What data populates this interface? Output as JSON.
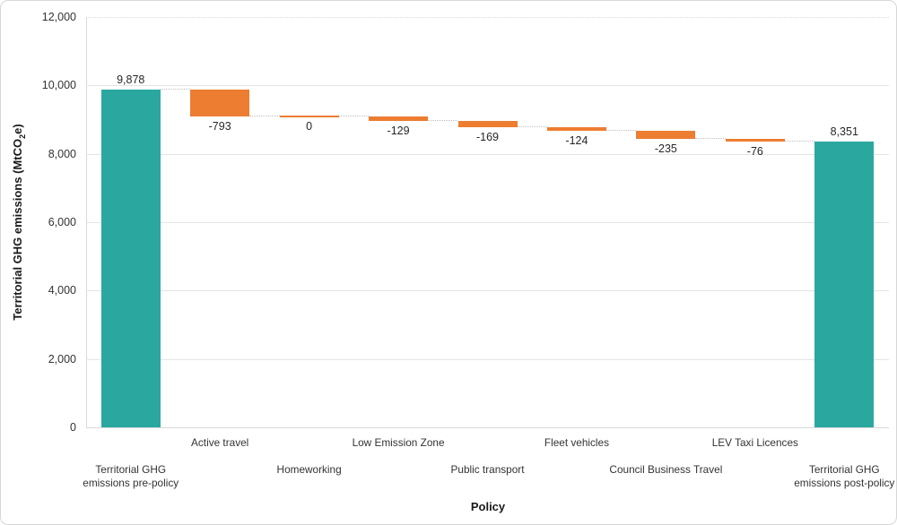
{
  "chart_data": {
    "type": "bar",
    "subtype": "waterfall",
    "title": "",
    "xlabel": "Policy",
    "ylabel": "Territorial GHG emissions (MtCO2e)",
    "ylabel_parts": {
      "pre": "Territorial GHG emissions (MtCO",
      "sub": "2",
      "post": "e)"
    },
    "ylim": [
      0,
      12000
    ],
    "ytick_step": 2000,
    "yticks": [
      {
        "value": 0,
        "label": "0"
      },
      {
        "value": 2000,
        "label": "2,000"
      },
      {
        "value": 4000,
        "label": "4,000"
      },
      {
        "value": 6000,
        "label": "6,000"
      },
      {
        "value": 8000,
        "label": "8,000"
      },
      {
        "value": 10000,
        "label": "10,000"
      },
      {
        "value": 12000,
        "label": "12,000"
      }
    ],
    "grid": true,
    "legend": "none",
    "categories": [
      "Territorial GHG emissions pre-policy",
      "Active travel",
      "Homeworking",
      "Low Emission Zone",
      "Public transport",
      "Fleet vehicles",
      "Council Business Travel",
      "LEV Taxi Licences",
      "Territorial GHG emissions post-policy"
    ],
    "bars": [
      {
        "category_lines": [
          "Territorial GHG",
          "emissions pre-policy"
        ],
        "label_row": 2,
        "value": 9878,
        "display": "9,878",
        "kind": "total"
      },
      {
        "category_lines": [
          "Active travel"
        ],
        "label_row": 1,
        "value": -793,
        "display": "-793",
        "kind": "delta"
      },
      {
        "category_lines": [
          "Homeworking"
        ],
        "label_row": 2,
        "value": 0,
        "display": "0",
        "kind": "delta"
      },
      {
        "category_lines": [
          "Low Emission Zone"
        ],
        "label_row": 1,
        "value": -129,
        "display": "-129",
        "kind": "delta"
      },
      {
        "category_lines": [
          "Public transport"
        ],
        "label_row": 2,
        "value": -169,
        "display": "-169",
        "kind": "delta"
      },
      {
        "category_lines": [
          "Fleet vehicles"
        ],
        "label_row": 1,
        "value": -124,
        "display": "-124",
        "kind": "delta"
      },
      {
        "category_lines": [
          "Council Business Travel"
        ],
        "label_row": 2,
        "value": -235,
        "display": "-235",
        "kind": "delta"
      },
      {
        "category_lines": [
          "LEV Taxi Licences"
        ],
        "label_row": 1,
        "value": -76,
        "display": "-76",
        "kind": "delta"
      },
      {
        "category_lines": [
          "Territorial GHG",
          "emissions post-policy"
        ],
        "label_row": 2,
        "value": 8351,
        "display": "8,351",
        "kind": "total"
      }
    ],
    "colors": {
      "total": "#2aa8a0",
      "delta": "#ed7d31",
      "gridline": "#e4e4e4",
      "connector": "#bfbfbf",
      "text": "#262626"
    }
  }
}
